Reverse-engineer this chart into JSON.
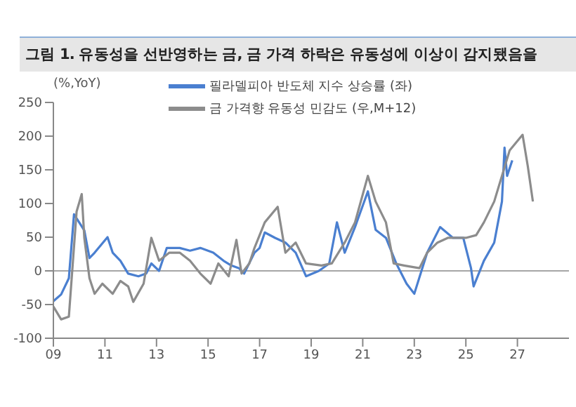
{
  "chart_data": {
    "type": "line",
    "title": "그림 1. 유동성을 선반영하는 금, 금 가격 하락은 유동성에 이상이 감지됐음을",
    "ylabel": "(%,YoY)",
    "legend": "top left",
    "grid": false,
    "marker": "none",
    "line_style": "solid",
    "xlim": [
      2009,
      2029
    ],
    "xticks": [
      {
        "value": 2009,
        "label": "09"
      },
      {
        "value": 2011,
        "label": "11"
      },
      {
        "value": 2013,
        "label": "13"
      },
      {
        "value": 2015,
        "label": "15"
      },
      {
        "value": 2017,
        "label": "17"
      },
      {
        "value": 2019,
        "label": "19"
      },
      {
        "value": 2021,
        "label": "21"
      },
      {
        "value": 2023,
        "label": "23"
      },
      {
        "value": 2025,
        "label": "25"
      },
      {
        "value": 2027,
        "label": "27"
      }
    ],
    "ylim": [
      -100,
      250
    ],
    "yticks": [
      -100,
      -50,
      0,
      50,
      100,
      150,
      200,
      250
    ],
    "ref_lines": [
      {
        "axis": "y",
        "value": 0,
        "color": "#a6a6a6"
      }
    ],
    "series": [
      {
        "name": "필라델피아 반도체 지수 상승률 (좌)",
        "color": "#4a7fd0",
        "x": [
          2009.0,
          2009.3,
          2009.6,
          2009.8,
          2010.2,
          2010.4,
          2010.6,
          2011.1,
          2011.3,
          2011.6,
          2011.9,
          2012.3,
          2012.6,
          2012.8,
          2013.1,
          2013.4,
          2013.9,
          2014.3,
          2014.7,
          2015.2,
          2015.6,
          2015.9,
          2016.2,
          2016.4,
          2016.8,
          2017.0,
          2017.2,
          2017.6,
          2018.0,
          2018.4,
          2018.8,
          2019.3,
          2019.7,
          2020.0,
          2020.3,
          2020.7,
          2021.2,
          2021.5,
          2021.9,
          2022.3,
          2022.7,
          2023.0,
          2023.5,
          2024.0,
          2024.5,
          2024.9,
          2025.2,
          2025.3,
          2025.7,
          2026.1,
          2026.4,
          2026.5,
          2026.6,
          2026.8
        ],
        "values": [
          -45,
          -35,
          -11,
          84,
          60,
          19,
          27,
          50,
          27,
          15,
          -4,
          -8,
          -4,
          11,
          0,
          34,
          34,
          30,
          34,
          27,
          15,
          8,
          4,
          -4,
          27,
          34,
          57,
          49,
          42,
          27,
          -8,
          0,
          11,
          72,
          27,
          65,
          118,
          61,
          49,
          11,
          -19,
          -34,
          27,
          65,
          49,
          49,
          4,
          -23,
          15,
          42,
          103,
          183,
          141,
          164
        ]
      },
      {
        "name": "금 가격향 유동성 민감도 (우,M+12)",
        "color": "#8c8c8c",
        "x": [
          2009.0,
          2009.3,
          2009.6,
          2009.9,
          2010.1,
          2010.2,
          2010.4,
          2010.6,
          2010.9,
          2011.3,
          2011.6,
          2011.9,
          2012.1,
          2012.5,
          2012.8,
          2013.1,
          2013.5,
          2013.9,
          2014.3,
          2014.7,
          2015.1,
          2015.4,
          2015.8,
          2016.1,
          2016.3,
          2016.6,
          2016.8,
          2017.2,
          2017.7,
          2018.0,
          2018.4,
          2018.8,
          2019.4,
          2019.8,
          2020.3,
          2020.7,
          2021.2,
          2021.5,
          2021.9,
          2022.2,
          2022.6,
          2023.2,
          2023.5,
          2023.9,
          2024.3,
          2024.7,
          2025.0,
          2025.4,
          2025.7,
          2026.1,
          2026.4,
          2026.7,
          2027.2,
          2027.4,
          2027.6
        ],
        "values": [
          -53,
          -72,
          -68,
          88,
          114,
          49,
          -11,
          -34,
          -19,
          -34,
          -15,
          -23,
          -46,
          -19,
          49,
          15,
          27,
          27,
          15,
          -4,
          -19,
          11,
          -8,
          46,
          -4,
          11,
          34,
          72,
          95,
          27,
          42,
          11,
          8,
          11,
          42,
          72,
          141,
          103,
          72,
          11,
          8,
          4,
          27,
          42,
          49,
          49,
          49,
          53,
          72,
          103,
          141,
          179,
          202,
          156,
          103
        ]
      }
    ]
  }
}
